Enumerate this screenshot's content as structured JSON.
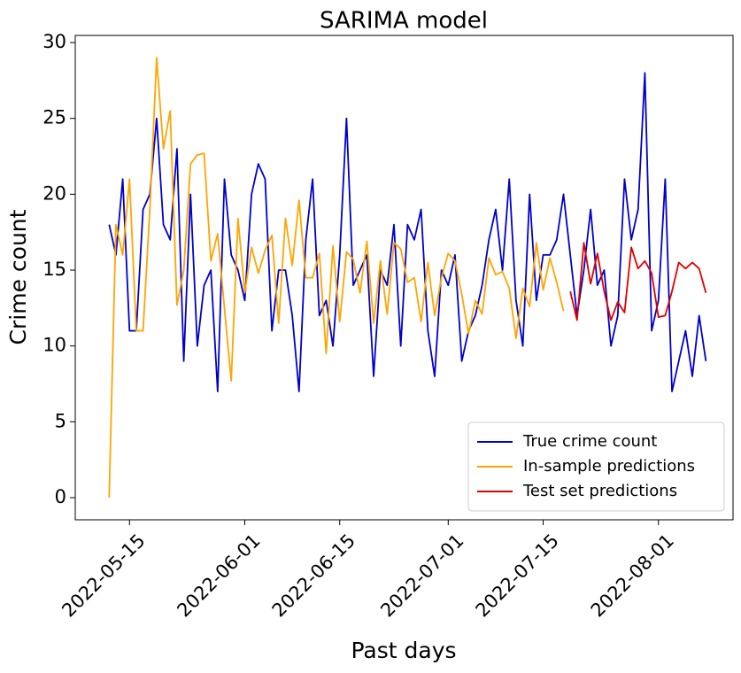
{
  "chart_data": {
    "type": "line",
    "title": "SARIMA model",
    "x_label": "Past days",
    "y_label": "Crime count",
    "x": [
      "2022-05-12",
      "2022-05-13",
      "2022-05-14",
      "2022-05-15",
      "2022-05-16",
      "2022-05-17",
      "2022-05-18",
      "2022-05-19",
      "2022-05-20",
      "2022-05-21",
      "2022-05-22",
      "2022-05-23",
      "2022-05-24",
      "2022-05-25",
      "2022-05-26",
      "2022-05-27",
      "2022-05-28",
      "2022-05-29",
      "2022-05-30",
      "2022-05-31",
      "2022-06-01",
      "2022-06-02",
      "2022-06-03",
      "2022-06-04",
      "2022-06-05",
      "2022-06-06",
      "2022-06-07",
      "2022-06-08",
      "2022-06-09",
      "2022-06-10",
      "2022-06-11",
      "2022-06-12",
      "2022-06-13",
      "2022-06-14",
      "2022-06-15",
      "2022-06-16",
      "2022-06-17",
      "2022-06-18",
      "2022-06-19",
      "2022-06-20",
      "2022-06-21",
      "2022-06-22",
      "2022-06-23",
      "2022-06-24",
      "2022-06-25",
      "2022-06-26",
      "2022-06-27",
      "2022-06-28",
      "2022-06-29",
      "2022-06-30",
      "2022-07-01",
      "2022-07-02",
      "2022-07-03",
      "2022-07-04",
      "2022-07-05",
      "2022-07-06",
      "2022-07-07",
      "2022-07-08",
      "2022-07-09",
      "2022-07-10",
      "2022-07-11",
      "2022-07-12",
      "2022-07-13",
      "2022-07-14",
      "2022-07-15",
      "2022-07-16",
      "2022-07-17",
      "2022-07-18",
      "2022-07-19",
      "2022-07-20",
      "2022-07-21",
      "2022-07-22",
      "2022-07-23",
      "2022-07-24",
      "2022-07-25",
      "2022-07-26",
      "2022-07-27",
      "2022-07-28",
      "2022-07-29",
      "2022-07-30",
      "2022-07-31",
      "2022-08-01",
      "2022-08-02",
      "2022-08-03",
      "2022-08-04",
      "2022-08-05",
      "2022-08-06",
      "2022-08-07",
      "2022-08-08"
    ],
    "series": [
      {
        "name": "True crime count",
        "color": "#0000cc",
        "values": [
          18,
          16,
          21,
          11,
          11,
          19,
          20,
          25,
          18,
          17,
          23,
          9,
          20,
          10,
          14,
          15,
          7,
          21,
          16,
          15,
          13,
          20,
          22,
          21,
          11,
          15,
          15,
          12,
          7,
          17,
          21,
          12,
          13,
          10,
          16,
          25,
          14,
          15,
          16,
          8,
          15,
          14,
          18,
          10,
          18,
          17,
          19,
          11,
          8,
          15,
          14,
          16,
          9,
          11,
          12,
          14,
          17,
          19,
          15,
          21,
          13,
          10,
          20,
          13,
          16,
          16,
          17,
          20,
          16,
          12,
          15,
          19,
          14,
          15,
          10,
          12,
          21,
          17,
          19,
          28,
          11,
          13,
          21,
          7,
          9,
          11,
          8,
          12,
          9
        ]
      },
      {
        "name": "In-sample predictions",
        "color": "#ffa500",
        "values": [
          0,
          18,
          16,
          21,
          11,
          11,
          19,
          29,
          23,
          25.5,
          12.7,
          15,
          22,
          22.6,
          22.7,
          15.6,
          17.4,
          12.5,
          7.7,
          18.4,
          13.5,
          16.5,
          14.8,
          16.3,
          17.3,
          11.5,
          18.4,
          15.3,
          19.6,
          14.5,
          14.5,
          16.1,
          9.5,
          16.6,
          11.6,
          16.2,
          15.7,
          13.5,
          16.9,
          11.5,
          15.6,
          12.1,
          16.8,
          16.4,
          14.2,
          14.5,
          11.6,
          15.5,
          12,
          14.5,
          16.1,
          15.6,
          13.4,
          10.8,
          13,
          12.1,
          15.8,
          14.7,
          14.9,
          13.8,
          10.5,
          13.8,
          12.6,
          16.8,
          13.7,
          15.8,
          14.2,
          12.3,
          null,
          null,
          null,
          null,
          null,
          null,
          null,
          null,
          null,
          null,
          null,
          null,
          null,
          null,
          null,
          null,
          null,
          null,
          null,
          null,
          null
        ]
      },
      {
        "name": "Test set predictions",
        "color": "#e00000",
        "values": [
          null,
          null,
          null,
          null,
          null,
          null,
          null,
          null,
          null,
          null,
          null,
          null,
          null,
          null,
          null,
          null,
          null,
          null,
          null,
          null,
          null,
          null,
          null,
          null,
          null,
          null,
          null,
          null,
          null,
          null,
          null,
          null,
          null,
          null,
          null,
          null,
          null,
          null,
          null,
          null,
          null,
          null,
          null,
          null,
          null,
          null,
          null,
          null,
          null,
          null,
          null,
          null,
          null,
          null,
          null,
          null,
          null,
          null,
          null,
          null,
          null,
          null,
          null,
          null,
          null,
          null,
          null,
          null,
          13.6,
          11.7,
          16.8,
          14.1,
          16.1,
          13.6,
          11.7,
          12.9,
          12.2,
          16.5,
          15.1,
          15.6,
          14.8,
          11.9,
          12,
          13.6,
          15.5,
          15.1,
          15.5,
          15.1,
          13.5
        ]
      }
    ],
    "xlim": [
      "2022-05-07",
      "2022-08-12"
    ],
    "xticks": [
      "2022-05-15",
      "2022-06-01",
      "2022-06-15",
      "2022-07-01",
      "2022-07-15",
      "2022-08-01"
    ],
    "ylim": [
      -1.46,
      30.47
    ],
    "yticks": [
      0,
      5,
      10,
      15,
      20,
      25,
      30
    ],
    "grid": false,
    "legend": "lower right"
  }
}
